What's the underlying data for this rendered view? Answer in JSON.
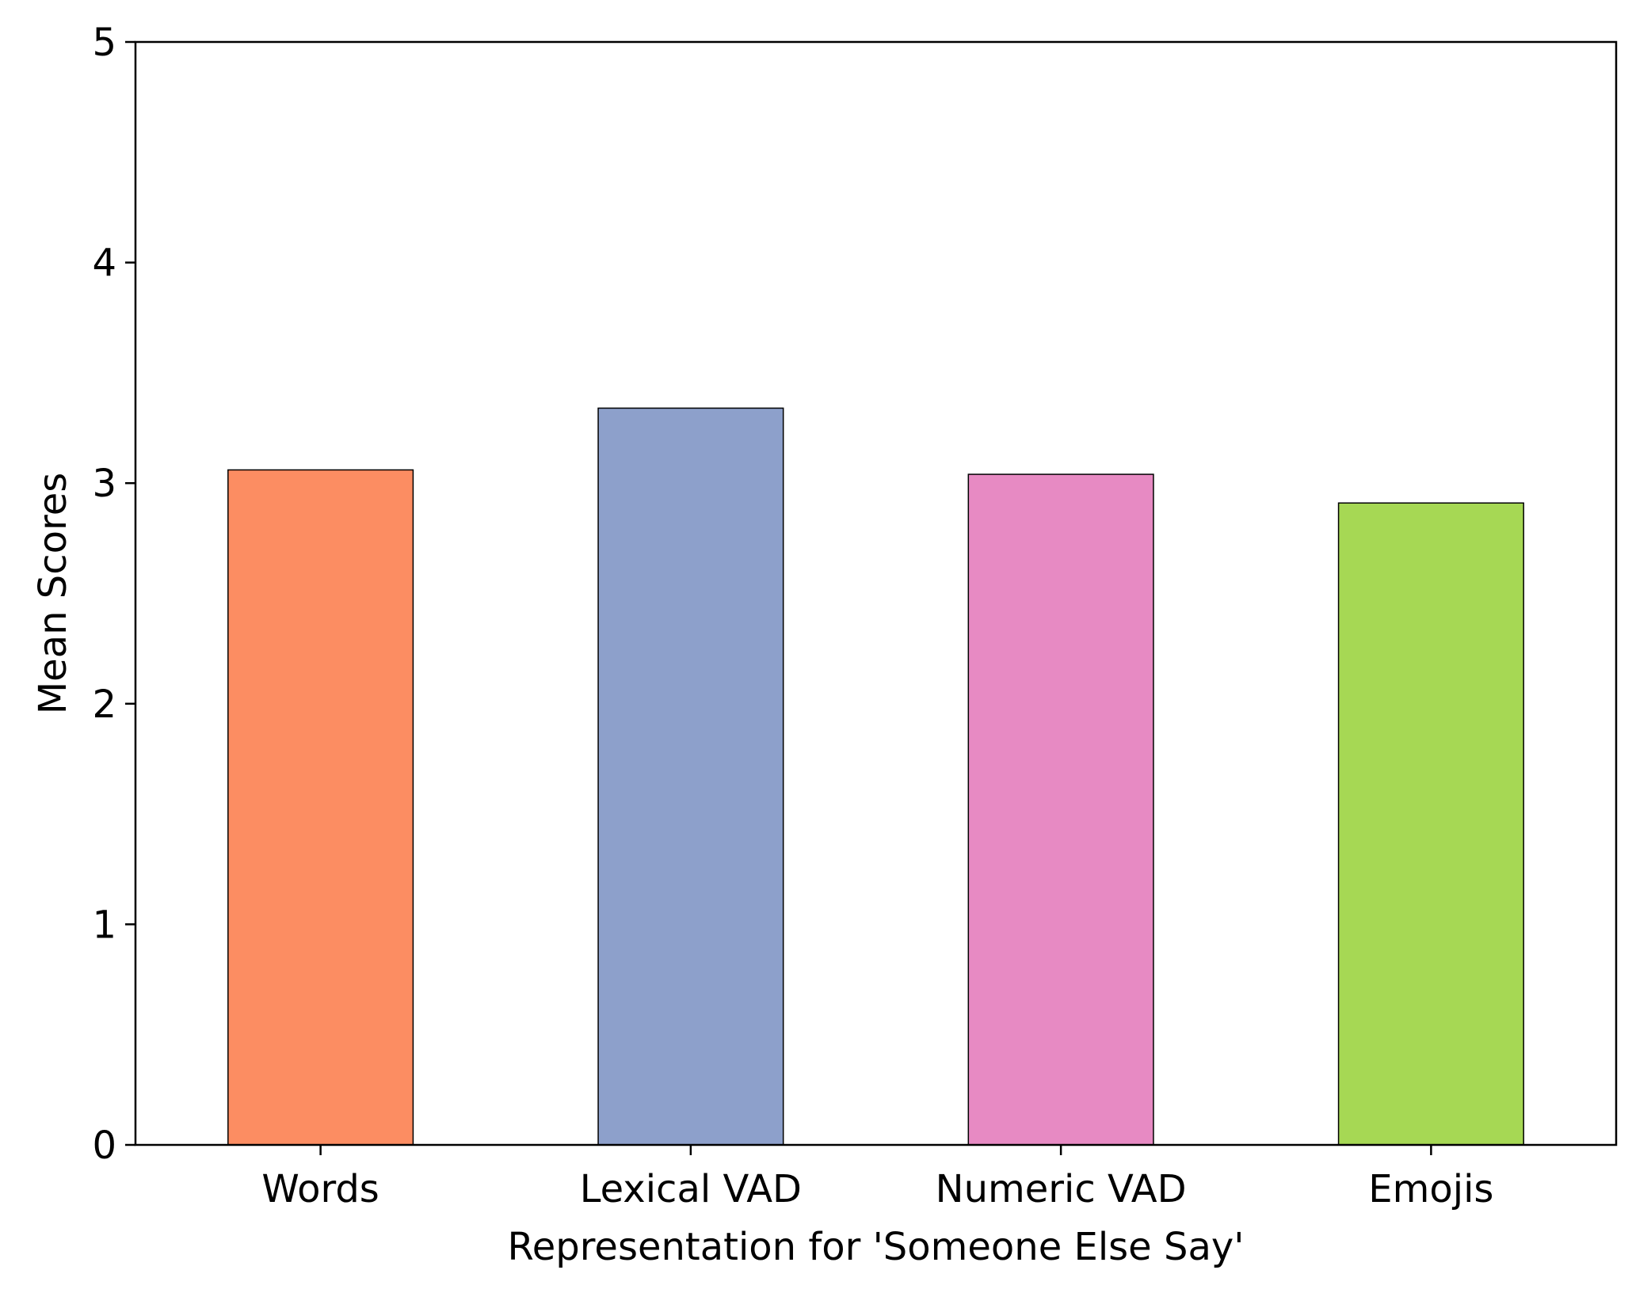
{
  "chart_data": {
    "type": "bar",
    "title": "",
    "xlabel": "Representation for 'Someone Else Say'",
    "ylabel": "Mean Scores",
    "categories": [
      "Words",
      "Lexical VAD",
      "Numeric VAD",
      "Emojis"
    ],
    "values": [
      3.06,
      3.34,
      3.04,
      2.91
    ],
    "colors": [
      "#fc8d62",
      "#8da0cb",
      "#e78ac3",
      "#a6d854"
    ],
    "ylim": [
      0,
      5
    ],
    "yticks": [
      "0",
      "1",
      "2",
      "3",
      "4",
      "5"
    ],
    "grid": false,
    "legend": "none"
  }
}
